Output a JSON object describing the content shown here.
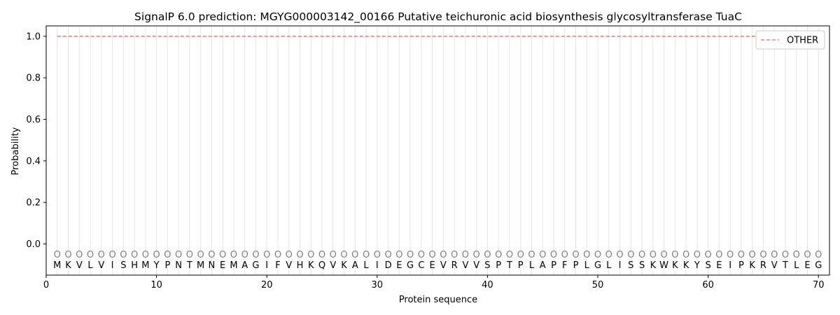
{
  "chart_data": {
    "type": "line",
    "title": "SignalP 6.0 prediction: MGYG000003142_00166 Putative teichuronic acid biosynthesis glycosyltransferase TuaC",
    "xlabel": "Protein sequence",
    "ylabel": "Probability",
    "xlim": [
      0,
      71
    ],
    "ylim": [
      -0.15,
      1.05
    ],
    "xticks": [
      0,
      10,
      20,
      30,
      40,
      50,
      60,
      70
    ],
    "yticks": [
      0.0,
      0.2,
      0.4,
      0.6,
      0.8,
      1.0
    ],
    "ytick_labels": [
      "0.0",
      "0.2",
      "0.4",
      "0.6",
      "0.8",
      "1.0"
    ],
    "sequence": [
      "M",
      "K",
      "V",
      "L",
      "V",
      "I",
      "S",
      "H",
      "M",
      "Y",
      "P",
      "N",
      "T",
      "M",
      "N",
      "E",
      "M",
      "A",
      "G",
      "I",
      "F",
      "V",
      "H",
      "K",
      "Q",
      "V",
      "K",
      "A",
      "L",
      "I",
      "D",
      "E",
      "G",
      "C",
      "E",
      "V",
      "R",
      "V",
      "V",
      "S",
      "P",
      "T",
      "P",
      "L",
      "A",
      "P",
      "F",
      "P",
      "L",
      "G",
      "L",
      "I",
      "S",
      "S",
      "K",
      "W",
      "K",
      "K",
      "Y",
      "S",
      "E",
      "I",
      "P",
      "K",
      "R",
      "V",
      "T",
      "L",
      "E",
      "G"
    ],
    "predicted_labels": "OOOOOOOOOOOOOOOOOOOOOOOOOOOOOOOOOOOOOOOOOOOOOOOOOOOOOOOOOOOOOOOOOOOOOO",
    "series": [
      {
        "name": "OTHER",
        "color": "#f08080",
        "style": "dashed",
        "x_start": 1,
        "x_end": 70,
        "value": 1.0
      }
    ],
    "legend": {
      "location": "upper right",
      "entries": [
        "OTHER"
      ]
    },
    "grid": "vertical lines at each residue"
  }
}
